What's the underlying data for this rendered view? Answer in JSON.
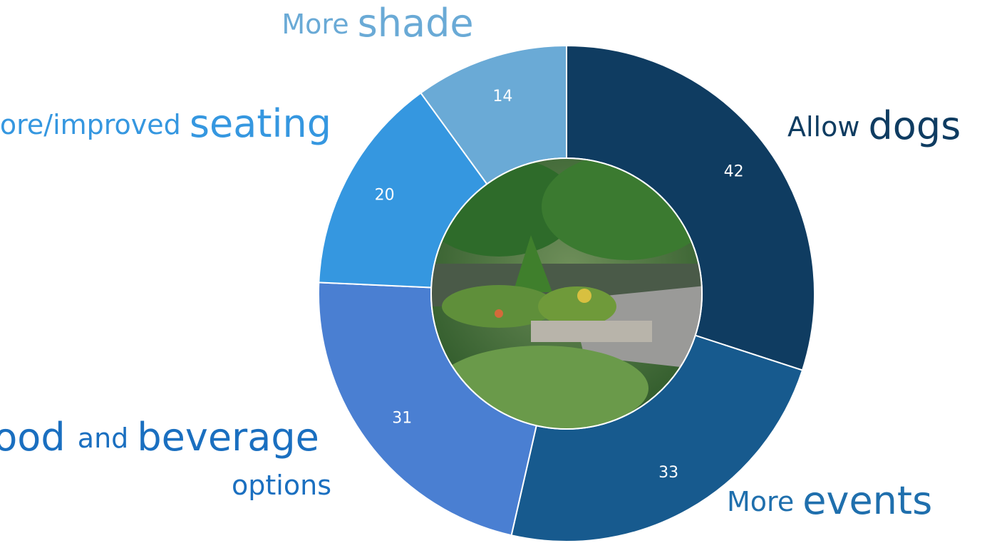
{
  "chart_data": {
    "type": "donut",
    "categories": [
      "Allow dogs",
      "More events",
      "More food and beverage options",
      "More/improved seating",
      "More shade"
    ],
    "values": [
      42,
      33,
      31,
      20,
      14
    ],
    "colors": [
      "#0f3c61",
      "#175a8e",
      "#4a7fd2",
      "#3597e0",
      "#6aaad6"
    ],
    "label_colors": [
      "#0f3c61",
      "#1f6fad",
      "#1a6fc0",
      "#3597e0",
      "#6aaad6"
    ],
    "emphasized_words": [
      [
        1
      ],
      [
        1
      ],
      [
        1,
        3
      ],
      [
        1
      ],
      [
        1
      ]
    ]
  }
}
